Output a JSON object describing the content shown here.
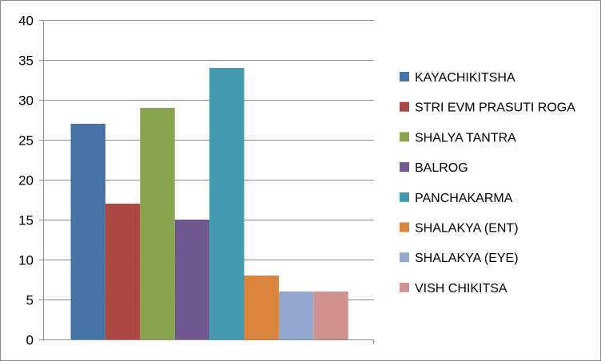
{
  "chart_data": {
    "type": "bar",
    "title": "",
    "xlabel": "",
    "ylabel": "",
    "ylim": [
      0,
      40
    ],
    "yticks": [
      0,
      5,
      10,
      15,
      20,
      25,
      30,
      35,
      40
    ],
    "grid": true,
    "legend": "right",
    "series": [
      {
        "name": "KAYACHIKITSHA",
        "value": 27,
        "color": "#4572A7"
      },
      {
        "name": "STRI EVM PRASUTI ROGA",
        "value": 17,
        "color": "#AA4643"
      },
      {
        "name": "SHALYA TANTRA",
        "value": 29,
        "color": "#89A54E"
      },
      {
        "name": "BALROG",
        "value": 15,
        "color": "#71588F"
      },
      {
        "name": "PANCHAKARMA",
        "value": 34,
        "color": "#4198AF"
      },
      {
        "name": "SHALAKYA (ENT)",
        "value": 8,
        "color": "#DB843D"
      },
      {
        "name": "SHALAKYA (EYE)",
        "value": 6,
        "color": "#93A9CF"
      },
      {
        "name": "VISH CHIKITSA",
        "value": 6,
        "color": "#D19392"
      }
    ]
  }
}
